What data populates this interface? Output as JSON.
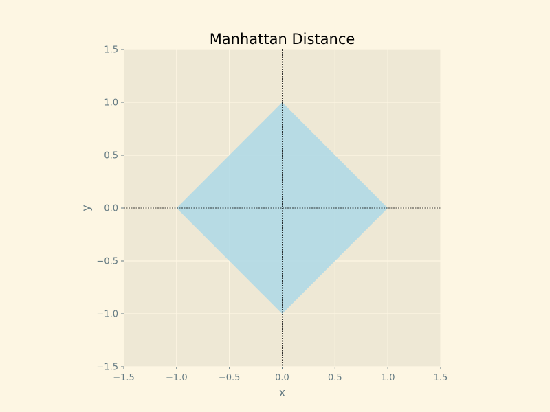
{
  "chart_data": {
    "type": "area",
    "title": "Manhattan Distance",
    "xlabel": "x",
    "ylabel": "y",
    "xlim": [
      -1.5,
      1.5
    ],
    "ylim": [
      -1.5,
      1.5
    ],
    "xticks": [
      -1.5,
      -1.0,
      -0.5,
      0.0,
      0.5,
      1.0,
      1.5
    ],
    "yticks": [
      -1.5,
      -1.0,
      -0.5,
      0.0,
      0.5,
      1.0,
      1.5
    ],
    "xtick_labels": [
      "−1.5",
      "−1.0",
      "−0.5",
      "0.0",
      "0.5",
      "1.0",
      "1.5"
    ],
    "ytick_labels": [
      "−1.5",
      "−1.0",
      "−0.5",
      "0.0",
      "0.5",
      "1.0",
      "1.5"
    ],
    "grid": true,
    "reference_lines": {
      "x": 0,
      "y": 0,
      "style": "dotted"
    },
    "region": {
      "description": "|x| + |y| <= 1",
      "vertices": [
        [
          1,
          0
        ],
        [
          0,
          1
        ],
        [
          -1,
          0
        ],
        [
          0,
          -1
        ]
      ],
      "color": "#add8e6"
    },
    "colors": {
      "figure_bg": "#fdf6e3",
      "axes_bg": "#eee8d5",
      "grid": "#fdf6e3",
      "text": "#657b83",
      "title": "#000000",
      "reference_line": "#000000"
    }
  }
}
